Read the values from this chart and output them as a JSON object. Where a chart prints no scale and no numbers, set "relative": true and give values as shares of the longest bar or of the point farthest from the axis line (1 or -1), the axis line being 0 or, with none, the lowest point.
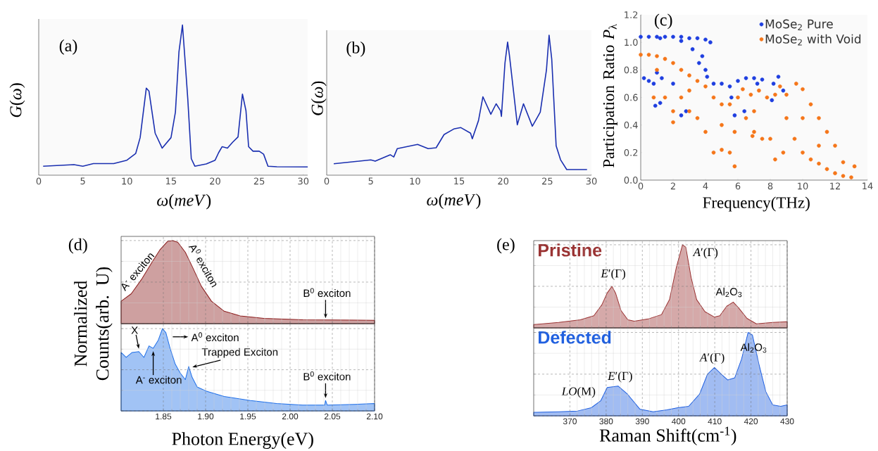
{
  "chart_data": [
    {
      "type": "line",
      "title": "(a)",
      "xlabel": "*ω*(*meV*)",
      "ylabel": "*G*(*ω*)",
      "relative": true,
      "tick_labels": "x",
      "color": "#1a2fb0",
      "x": [
        0.5,
        4,
        5,
        6.2,
        8.5,
        10,
        11,
        11.5,
        12.2,
        12.5,
        13.2,
        14.0,
        15,
        15.5,
        15.9,
        16.3,
        16.6,
        16.9,
        17.3,
        17.7,
        19,
        20,
        20.4,
        20.8,
        21.4,
        22,
        22.6,
        23.1,
        23.5,
        23.8,
        24.3,
        25,
        25.5,
        26,
        27,
        30.5
      ],
      "values": [
        0.06,
        0.07,
        0.06,
        0.077,
        0.077,
        0.1,
        0.145,
        0.25,
        0.58,
        0.56,
        0.28,
        0.18,
        0.25,
        0.42,
        0.82,
        1.0,
        0.76,
        0.51,
        0.11,
        0.06,
        0.075,
        0.1,
        0.15,
        0.19,
        0.18,
        0.22,
        0.255,
        0.54,
        0.43,
        0.19,
        0.16,
        0.16,
        0.14,
        0.06,
        0.056,
        0.055
      ],
      "xlim": [
        0,
        30.5
      ],
      "xticks": [
        0,
        5,
        10,
        15,
        20,
        25,
        30
      ]
    },
    {
      "type": "line",
      "title": "(b)",
      "xlabel": "*ω*(*meV*)",
      "ylabel": "*G*(*ω*)",
      "relative": true,
      "tick_labels": "x",
      "color": "#1a2fb0",
      "x": [
        0.8,
        5,
        5.5,
        7.2,
        7.6,
        8,
        10.3,
        11.5,
        12.4,
        13.3,
        14.4,
        15.2,
        16.3,
        16.5,
        17.2,
        17.7,
        18.6,
        19.2,
        19.7,
        19.8,
        20.2,
        20.5,
        20.7,
        21.6,
        22.3,
        23.3,
        24.2,
        24.9,
        25.2,
        25.5,
        26.0,
        26.5,
        27.2,
        29.5
      ],
      "values": [
        0.082,
        0.109,
        0.1,
        0.146,
        0.13,
        0.19,
        0.22,
        0.19,
        0.196,
        0.29,
        0.33,
        0.34,
        0.3,
        0.26,
        0.39,
        0.56,
        0.435,
        0.51,
        0.46,
        0.42,
        0.8,
        0.95,
        0.86,
        0.36,
        0.51,
        0.35,
        0.45,
        0.75,
        1.0,
        0.83,
        0.21,
        0.11,
        0.04,
        0.04
      ],
      "xlim": [
        0,
        30
      ],
      "xticks": [
        0,
        5,
        10,
        15,
        20,
        25,
        30
      ]
    },
    {
      "type": "scatter",
      "title": "(c)",
      "xlabel": "Frequency(THz)",
      "ylabel": "Participation Ratio *P*$_{λ}$",
      "legend": "top right",
      "series": [
        {
          "name": "MoSe$_{2}$ Pure",
          "color": "#1f3fe0",
          "x": [
            0,
            0.5,
            1,
            1.5,
            2,
            2.5,
            3,
            3.5,
            4,
            4.3,
            3.2,
            3.8,
            3.6,
            4,
            4.1,
            2.5,
            1.2,
            0.2,
            0.5,
            0.8,
            1,
            1.3,
            0.9,
            1.2,
            2,
            2.5,
            2.8,
            4.5,
            5,
            5.5,
            6,
            6.5,
            7,
            7.5,
            7.2,
            5.6,
            8.2,
            8.5,
            8.1,
            8.8,
            6.4,
            5.8
          ],
          "values": [
            1.04,
            1.04,
            1.04,
            1.04,
            1.04,
            1.04,
            1.03,
            1.03,
            1.02,
            1.0,
            0.95,
            0.9,
            0.85,
            0.8,
            0.75,
            1.01,
            1.03,
            0.74,
            0.72,
            0.7,
            0.78,
            0.74,
            0.54,
            0.56,
            0.7,
            0.47,
            0.5,
            0.7,
            0.7,
            0.68,
            0.72,
            0.74,
            0.74,
            0.73,
            0.7,
            0.6,
            0.7,
            0.75,
            0.58,
            0.65,
            0.5,
            0.47
          ]
        },
        {
          "name": "MoSe$_{2}$ with Void",
          "color": "#f5761a",
          "x": [
            0,
            0.5,
            1,
            1.5,
            2,
            2.5,
            3,
            3.5,
            4,
            4.5,
            5,
            5.5,
            6,
            6.3,
            6.8,
            7.3,
            7.8,
            8.3,
            8.6,
            9,
            9.6,
            10,
            10.5,
            11,
            11.5,
            12,
            12.5,
            13.2,
            1.5,
            2,
            2.5,
            3,
            3.5,
            4,
            4.5,
            5,
            5.5,
            5.8,
            6.5,
            7,
            7.5,
            8,
            8.3,
            8.8,
            9.5,
            10,
            10.5,
            11,
            11.5,
            12,
            12.5,
            13,
            3,
            5,
            7,
            9,
            10,
            11,
            1,
            2,
            0.8,
            5.8,
            6.9
          ],
          "values": [
            0.91,
            0.91,
            0.9,
            0.88,
            0.85,
            0.8,
            0.76,
            0.72,
            0.68,
            0.6,
            0.55,
            0.55,
            0.6,
            0.66,
            0.62,
            0.65,
            0.6,
            0.62,
            0.68,
            0.62,
            0.7,
            0.66,
            0.55,
            0.45,
            0.35,
            0.25,
            0.13,
            0.1,
            0.6,
            0.5,
            0.6,
            0.5,
            0.45,
            0.35,
            0.2,
            0.22,
            0.2,
            0.35,
            0.45,
            0.35,
            0.3,
            0.3,
            0.15,
            0.2,
            0.3,
            0.2,
            0.15,
            0.12,
            0.08,
            0.05,
            0.03,
            0.02,
            0.65,
            0.4,
            0.5,
            0.45,
            0.45,
            0.25,
            0.8,
            0.42,
            0.6,
            0.1,
            0.32
          ]
        }
      ],
      "xlim": [
        0,
        14
      ],
      "xticks": [
        0,
        2,
        4,
        6,
        8,
        10,
        12,
        14
      ],
      "ylim": [
        0,
        1.2
      ],
      "yticks": [
        {
          "value": 0,
          "label": "0.0"
        },
        {
          "value": 0.2,
          "label": "0.2"
        },
        {
          "value": 0.4,
          "label": "0.4"
        },
        {
          "value": 0.6,
          "label": "0.6"
        },
        {
          "value": 0.8,
          "label": "0.8"
        },
        {
          "value": 1.0,
          "label": "1.0"
        },
        {
          "value": 1.2,
          "label": "1.2"
        }
      ]
    },
    {
      "type": "area",
      "title": "(d)",
      "ylabel": "Normalized Counts(arb. U)",
      "relative": true,
      "grid": true,
      "tick_labels": false,
      "color": "#8b1c1c",
      "x": [
        1.8,
        1.812,
        1.824,
        1.836,
        1.846,
        1.855,
        1.861,
        1.867,
        1.876,
        1.885,
        1.895,
        1.907,
        1.922,
        1.941,
        1.969,
        2.015,
        2.1
      ],
      "values": [
        0.27,
        0.36,
        0.53,
        0.73,
        0.89,
        0.99,
        1.0,
        0.98,
        0.86,
        0.67,
        0.45,
        0.27,
        0.15,
        0.094,
        0.063,
        0.047,
        0.04
      ],
      "xlim": [
        1.8,
        2.1
      ],
      "xticks": [
        {
          "value": 1.85,
          "label": null
        },
        {
          "value": 1.9,
          "label": null
        },
        {
          "value": 1.95,
          "label": null
        },
        {
          "value": 2.0,
          "label": null
        },
        {
          "value": 2.05,
          "label": null
        },
        {
          "value": 2.1,
          "label": null
        }
      ],
      "annotations": [
        {
          "text": "A$^{-}$ exciton",
          "x": 1.824,
          "y": 0.53
        },
        {
          "text": "A$^{0}$ exciton",
          "x": 1.885,
          "y": 0.67
        },
        {
          "text": "B$^{0}$ exciton",
          "x": 2.042,
          "y": 0.04
        }
      ]
    },
    {
      "type": "area",
      "xlabel": "Photon Energy(eV)",
      "relative": true,
      "grid": true,
      "tick_labels": "x",
      "color": "#1f6fe8",
      "x": [
        1.8,
        1.806,
        1.813,
        1.821,
        1.827,
        1.833,
        1.838,
        1.844,
        1.849,
        1.853,
        1.858,
        1.864,
        1.87,
        1.876,
        1.88,
        1.884,
        1.89,
        1.901,
        1.922,
        1.953,
        1.984,
        2.015,
        2.041,
        2.042,
        2.044,
        2.076,
        2.1
      ],
      "values": [
        0.71,
        0.65,
        0.71,
        0.72,
        0.65,
        0.79,
        0.76,
        0.86,
        1.0,
        0.95,
        0.76,
        0.57,
        0.46,
        0.38,
        0.54,
        0.41,
        0.29,
        0.24,
        0.175,
        0.127,
        0.089,
        0.07,
        0.07,
        0.127,
        0.07,
        0.08,
        0.089
      ],
      "xlim": [
        1.8,
        2.1
      ],
      "xticks": [
        {
          "value": 1.85,
          "label": "1.85"
        },
        {
          "value": 1.9,
          "label": "1.90"
        },
        {
          "value": 1.95,
          "label": "1.95"
        },
        {
          "value": 2.0,
          "label": "2.00"
        },
        {
          "value": 2.05,
          "label": "2.05"
        },
        {
          "value": 2.1,
          "label": "2.10"
        }
      ],
      "annotations": [
        {
          "text": "X",
          "x": 1.821,
          "y": 0.72
        },
        {
          "text": "A$^{-}$ exciton",
          "x": 1.838,
          "y": 0.76
        },
        {
          "text": "A$^{0}$ exciton",
          "x": 1.857,
          "y": 0.9
        },
        {
          "text": "Trapped Exciton",
          "x": 1.881,
          "y": 0.54
        },
        {
          "text": "B$^{0}$ exciton",
          "x": 2.042,
          "y": 0.13
        }
      ]
    },
    {
      "type": "area",
      "title": "(e)",
      "relative": true,
      "grid": true,
      "tick_labels": false,
      "x": [
        360,
        366.9,
        372.9,
        376.6,
        378.8,
        380.3,
        381.6,
        382.6,
        384.1,
        386,
        387.8,
        391.6,
        395.3,
        397.5,
        399.4,
        401.1,
        402,
        403.5,
        405,
        407.3,
        409.9,
        411.4,
        413.3,
        415.1,
        416.6,
        418.9,
        421.5,
        426,
        430
      ],
      "series": [
        {
          "name": "Pristine",
          "color": "#9a3333",
          "values": [
            0.04,
            0.065,
            0.097,
            0.146,
            0.276,
            0.42,
            0.5,
            0.42,
            0.21,
            0.097,
            0.081,
            0.107,
            0.16,
            0.34,
            0.73,
            1.0,
            0.97,
            0.6,
            0.34,
            0.195,
            0.13,
            0.146,
            0.26,
            0.31,
            0.24,
            0.114,
            0.049,
            0.065,
            0.075
          ]
        }
      ],
      "xlim": [
        360,
        430
      ],
      "xticks": [
        {
          "value": 370,
          "label": null
        },
        {
          "value": 380,
          "label": null
        },
        {
          "value": 390,
          "label": null
        },
        {
          "value": 400,
          "label": null
        },
        {
          "value": 410,
          "label": null
        },
        {
          "value": 420,
          "label": null
        },
        {
          "value": 430,
          "label": null
        }
      ],
      "annotations": [
        {
          "text": "*E*′(Γ)",
          "x": 381.6,
          "y": 0.5
        },
        {
          "text": "*A*′(Γ)",
          "x": 401.1,
          "y": 1.0
        },
        {
          "text": "Al$_{2}$O$_{3}$",
          "x": 415.1,
          "y": 0.31
        }
      ]
    },
    {
      "type": "area",
      "xlabel": "Raman Shift(cm$^{-1}$)",
      "relative": true,
      "grid": true,
      "tick_labels": "x",
      "x": [
        360,
        366.9,
        372.1,
        375.9,
        378.5,
        380.3,
        383.3,
        385.9,
        389.3,
        393,
        396.8,
        399.8,
        402.8,
        405.8,
        408,
        409.9,
        411.8,
        413.6,
        415.5,
        417.4,
        419.2,
        420.4,
        422.2,
        424.1,
        426,
        428.2,
        430
      ],
      "series": [
        {
          "name": "Defected",
          "color": "#2060e0",
          "values": [
            0.042,
            0.049,
            0.058,
            0.097,
            0.18,
            0.34,
            0.357,
            0.26,
            0.081,
            0.049,
            0.071,
            0.097,
            0.114,
            0.26,
            0.5,
            0.58,
            0.5,
            0.43,
            0.455,
            0.68,
            1.0,
            0.97,
            0.62,
            0.29,
            0.13,
            0.114,
            0.13
          ]
        }
      ],
      "xlim": [
        360,
        430
      ],
      "xticks": [
        370,
        380,
        390,
        400,
        410,
        420,
        430
      ],
      "annotations": [
        {
          "text": "*LO*(M)",
          "x": 378.5,
          "y": 0.18
        },
        {
          "text": "*E*′(Γ)",
          "x": 383.3,
          "y": 0.357
        },
        {
          "text": "*A*′(Γ)",
          "x": 409.9,
          "y": 0.58
        },
        {
          "text": "Al$_{2}$O$_{3}$",
          "x": 419.2,
          "y": 1.0
        }
      ]
    }
  ]
}
